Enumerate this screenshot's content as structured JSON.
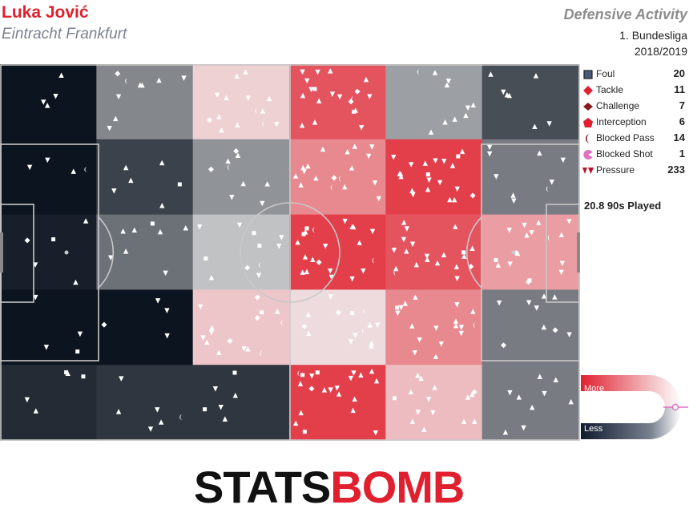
{
  "header": {
    "player": "Luka Jović",
    "team": "Eintracht Frankfurt",
    "title": "Defensive Activity",
    "competition": "1. Bundesliga",
    "season": "2018/2019"
  },
  "legend": [
    {
      "label": "Foul",
      "count": "20",
      "icon": "square-icon",
      "color": "#4a5a78"
    },
    {
      "label": "Tackle",
      "count": "11",
      "icon": "diamond-icon",
      "color": "#e0202e"
    },
    {
      "label": "Challenge",
      "count": "7",
      "icon": "diamond-icon",
      "color": "#8b1a1a"
    },
    {
      "label": "Interception",
      "count": "6",
      "icon": "pentagon-icon",
      "color": "#e0202e"
    },
    {
      "label": "Blocked Pass",
      "count": "14",
      "icon": "crescent-icon",
      "color": "#7a1a1a"
    },
    {
      "label": "Blocked Shot",
      "count": "1",
      "icon": "pacman-icon",
      "color": "#e070c0"
    },
    {
      "label": "Pressure",
      "count": "233",
      "icon": "triangles-icon",
      "color": "#c0102a"
    }
  ],
  "minutes_played": "20.8 90s Played",
  "scale": {
    "more": "More",
    "less": "Less"
  },
  "logo": {
    "part1": "STATS",
    "part2": "BOMB"
  },
  "chart_data": {
    "type": "heatmap",
    "title": "Defensive Activity",
    "description_units": "relative activity level per pitch zone, 6 columns (own goal → opponent goal) × 5 rows (top → bottom); positive = more than average (red), negative = less (dark)",
    "columns": 6,
    "rows": 5,
    "values": [
      [
        -0.95,
        -0.45,
        0.15,
        0.75,
        -0.35,
        -0.7
      ],
      [
        -0.95,
        -0.75,
        -0.4,
        0.5,
        0.85,
        -0.5
      ],
      [
        -0.9,
        -0.55,
        -0.2,
        0.85,
        0.75,
        0.4
      ],
      [
        -0.95,
        -0.95,
        0.2,
        0.1,
        0.5,
        -0.5
      ],
      [
        -0.85,
        -0.8,
        -0.8,
        0.85,
        0.25,
        -0.5
      ]
    ],
    "event_counts": {
      "Foul": 20,
      "Tackle": 11,
      "Challenge": 7,
      "Interception": 6,
      "Blocked Pass": 14,
      "Blocked Shot": 1,
      "Pressure": 233
    },
    "colors": {
      "more": "#e0202e",
      "neutral": "#f0f0f0",
      "less": "#000814"
    }
  }
}
